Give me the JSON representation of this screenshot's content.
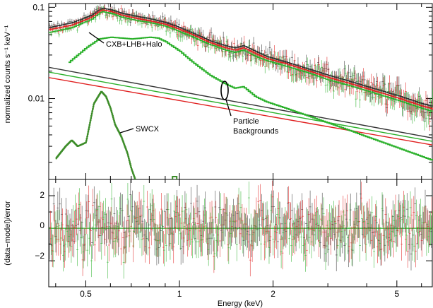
{
  "chart_data": [
    {
      "type": "line",
      "title": "",
      "xlabel": "",
      "ylabel": "normalized counts s⁻¹ keV⁻¹",
      "xscale": "log",
      "yscale": "log",
      "xlim": [
        0.38,
        6.5
      ],
      "ylim": [
        0.0013,
        0.11
      ],
      "ytick_labels": [
        "0.1",
        "0.01"
      ],
      "yticks": [
        0.1,
        0.01
      ],
      "colors": {
        "black": "#333333",
        "red": "#e02020",
        "green": "#2ab02a",
        "darkgreen": "#3c8c28"
      },
      "annotations": [
        {
          "text": "CXB+LHB+Halo",
          "x": 0.85,
          "y": 0.046
        },
        {
          "text": "SWCX",
          "x": 0.67,
          "y": 0.0032
        },
        {
          "text": "Particle",
          "x": 1.55,
          "y": 0.0058
        },
        {
          "text": "Backgrounds",
          "x": 1.55,
          "y": 0.0043
        }
      ],
      "series": [
        {
          "role": "total-black",
          "color": "#333333",
          "x": [
            0.38,
            0.45,
            0.52,
            0.56,
            0.6,
            0.65,
            0.72,
            0.8,
            0.9,
            1.0,
            1.1,
            1.25,
            1.4,
            1.5,
            1.6,
            1.75,
            1.9,
            2.2,
            2.6,
            3.0,
            3.5,
            4.0,
            5.0,
            6.0,
            6.5
          ],
          "y": [
            0.06,
            0.068,
            0.082,
            0.098,
            0.094,
            0.086,
            0.08,
            0.075,
            0.068,
            0.06,
            0.052,
            0.043,
            0.038,
            0.036,
            0.038,
            0.033,
            0.029,
            0.025,
            0.021,
            0.018,
            0.0155,
            0.0135,
            0.0108,
            0.0088,
            0.0082
          ]
        },
        {
          "role": "total-red",
          "color": "#e02020",
          "x": [
            0.38,
            0.45,
            0.52,
            0.56,
            0.6,
            0.65,
            0.72,
            0.8,
            0.9,
            1.0,
            1.1,
            1.25,
            1.4,
            1.5,
            1.6,
            1.75,
            1.9,
            2.2,
            2.6,
            3.0,
            3.5,
            4.0,
            5.0,
            6.0,
            6.5
          ],
          "y": [
            0.057,
            0.064,
            0.078,
            0.094,
            0.09,
            0.082,
            0.076,
            0.071,
            0.065,
            0.057,
            0.05,
            0.041,
            0.036,
            0.034,
            0.036,
            0.031,
            0.0275,
            0.024,
            0.02,
            0.017,
            0.0147,
            0.0128,
            0.0102,
            0.0083,
            0.0077
          ]
        },
        {
          "role": "total-green",
          "color": "#2ab02a",
          "x": [
            0.38,
            0.45,
            0.52,
            0.56,
            0.6,
            0.65,
            0.72,
            0.8,
            0.9,
            1.0,
            1.1,
            1.25,
            1.4,
            1.5,
            1.6,
            1.75,
            1.9,
            2.2,
            2.6,
            3.0,
            3.5,
            4.0,
            5.0,
            6.0,
            6.5
          ],
          "y": [
            0.053,
            0.06,
            0.074,
            0.09,
            0.086,
            0.078,
            0.072,
            0.068,
            0.062,
            0.054,
            0.047,
            0.039,
            0.034,
            0.032,
            0.034,
            0.029,
            0.026,
            0.0225,
            0.019,
            0.016,
            0.0139,
            0.0121,
            0.0096,
            0.0078,
            0.0072
          ]
        },
        {
          "role": "cxb-lhb-halo",
          "color": "#2ab02a",
          "x": [
            0.44,
            0.5,
            0.55,
            0.6,
            0.65,
            0.7,
            0.75,
            0.8,
            0.85,
            0.9,
            1.0,
            1.1,
            1.25,
            1.4,
            1.5,
            1.6,
            1.75,
            1.9,
            2.2,
            2.6,
            3.0,
            3.5,
            4.0,
            5.0,
            6.5
          ],
          "y": [
            0.025,
            0.036,
            0.045,
            0.047,
            0.046,
            0.045,
            0.046,
            0.047,
            0.046,
            0.042,
            0.033,
            0.025,
            0.018,
            0.0145,
            0.013,
            0.0135,
            0.0105,
            0.0092,
            0.0078,
            0.0064,
            0.0054,
            0.0045,
            0.0038,
            0.0029,
            0.0021
          ]
        },
        {
          "role": "particle-black",
          "color": "#333333",
          "x": [
            0.38,
            6.5
          ],
          "y": [
            0.022,
            0.0037
          ]
        },
        {
          "role": "particle-green",
          "color": "#2ab02a",
          "x": [
            0.38,
            6.5
          ],
          "y": [
            0.0195,
            0.0034
          ]
        },
        {
          "role": "particle-red",
          "color": "#e02020",
          "x": [
            0.38,
            6.5
          ],
          "y": [
            0.017,
            0.0031
          ]
        },
        {
          "role": "swcx",
          "color": "#3c8c28",
          "x": [
            0.4,
            0.43,
            0.45,
            0.47,
            0.5,
            0.53,
            0.56,
            0.58,
            0.6,
            0.62,
            0.65,
            0.68,
            0.7,
            0.72,
            0.74
          ],
          "y": [
            0.0022,
            0.003,
            0.0035,
            0.003,
            0.0033,
            0.0088,
            0.012,
            0.0105,
            0.0078,
            0.0052,
            0.0038,
            0.0025,
            0.0017,
            0.0013,
            0.0011
          ]
        }
      ]
    },
    {
      "type": "scatter",
      "title": "",
      "xlabel": "Energy (keV)",
      "ylabel": "(data−model)/error",
      "xscale": "log",
      "xlim": [
        0.38,
        6.5
      ],
      "ylim": [
        -3.6,
        3.0
      ],
      "xtick_labels": [
        "0.5",
        "1",
        "2",
        "5"
      ],
      "xticks": [
        0.5,
        1,
        2,
        5
      ],
      "ytick_labels": [
        "2",
        "0",
        "−2"
      ],
      "yticks": [
        2,
        0,
        -2
      ],
      "zero_line": 0
    }
  ]
}
